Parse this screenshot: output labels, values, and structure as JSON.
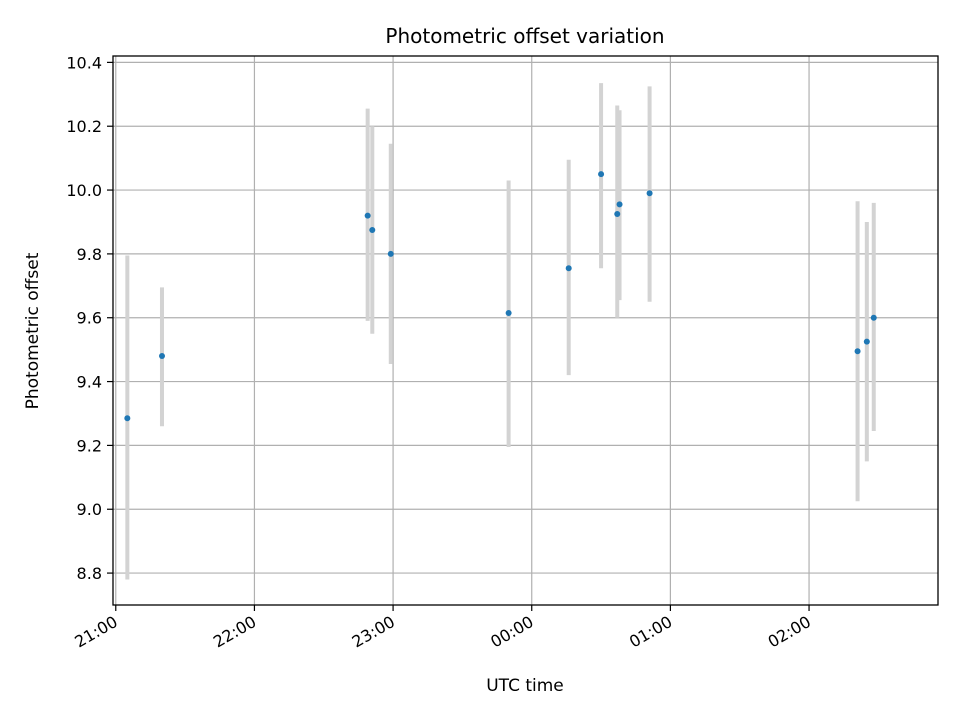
{
  "chart_data": {
    "type": "scatter",
    "title": "Photometric offset variation",
    "xlabel": "UTC time",
    "ylabel": "Photometric offset",
    "grid": true,
    "xlim_hours": [
      20.98,
      26.93
    ],
    "ylim": [
      8.7,
      10.42
    ],
    "x_ticks": [
      {
        "hour": 21,
        "label": "21:00"
      },
      {
        "hour": 22,
        "label": "22:00"
      },
      {
        "hour": 23,
        "label": "23:00"
      },
      {
        "hour": 24,
        "label": "00:00"
      },
      {
        "hour": 25,
        "label": "01:00"
      },
      {
        "hour": 26,
        "label": "02:00"
      }
    ],
    "y_ticks": [
      {
        "value": 8.8,
        "label": "8.8"
      },
      {
        "value": 9.0,
        "label": "9.0"
      },
      {
        "value": 9.2,
        "label": "9.2"
      },
      {
        "value": 9.4,
        "label": "9.4"
      },
      {
        "value": 9.6,
        "label": "9.6"
      },
      {
        "value": 9.8,
        "label": "9.8"
      },
      {
        "value": 10.0,
        "label": "10.0"
      },
      {
        "value": 10.2,
        "label": "10.2"
      },
      {
        "value": 10.4,
        "label": "10.4"
      }
    ],
    "point_color": "#1f77b4",
    "errorbar_color": "#d3d3d3",
    "series": [
      {
        "points": [
          {
            "x": "21:05",
            "y": 9.285,
            "err_low": 8.78,
            "err_high": 9.795
          },
          {
            "x": "21:20",
            "y": 9.48,
            "err_low": 9.26,
            "err_high": 9.695
          },
          {
            "x": "22:49",
            "y": 9.92,
            "err_low": 9.59,
            "err_high": 10.255
          },
          {
            "x": "22:51",
            "y": 9.875,
            "err_low": 9.55,
            "err_high": 10.2
          },
          {
            "x": "22:59",
            "y": 9.8,
            "err_low": 9.455,
            "err_high": 10.145
          },
          {
            "x": "23:50",
            "y": 9.615,
            "err_low": 9.195,
            "err_high": 10.03
          },
          {
            "x": "00:16",
            "y": 9.755,
            "err_low": 9.42,
            "err_high": 10.095
          },
          {
            "x": "00:30",
            "y": 10.05,
            "err_low": 9.755,
            "err_high": 10.335
          },
          {
            "x": "00:37",
            "y": 9.925,
            "err_low": 9.6,
            "err_high": 10.265
          },
          {
            "x": "00:38",
            "y": 9.955,
            "err_low": 9.655,
            "err_high": 10.25
          },
          {
            "x": "00:51",
            "y": 9.99,
            "err_low": 9.65,
            "err_high": 10.325
          },
          {
            "x": "02:21",
            "y": 9.495,
            "err_low": 9.025,
            "err_high": 9.965
          },
          {
            "x": "02:25",
            "y": 9.525,
            "err_low": 9.15,
            "err_high": 9.9
          },
          {
            "x": "02:28",
            "y": 9.6,
            "err_low": 9.245,
            "err_high": 9.96
          }
        ]
      }
    ]
  }
}
